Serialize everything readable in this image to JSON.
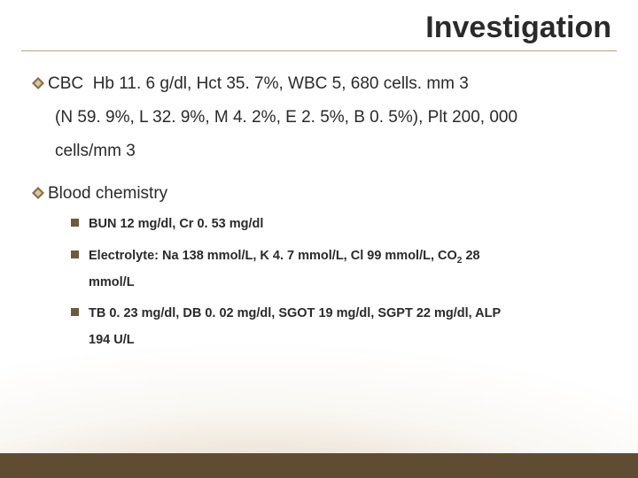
{
  "title": "Investigation",
  "colors": {
    "accent": "#6f5a3b",
    "underline": "#b9a27b",
    "footer": "#5f4c32",
    "text": "#2a2a2a",
    "diamond_outer": "#8a6f44",
    "diamond_inner": "#d8c8a8"
  },
  "sections": [
    {
      "lead": "CBC",
      "text": "Hb 11. 6 g/dl, Hct 35. 7%, WBC 5, 680 cells. mm 3",
      "cont_lines": [
        "(N 59. 9%, L 32. 9%, M 4. 2%, E 2. 5%, B 0. 5%), Plt 200, 000",
        "cells/mm 3"
      ],
      "sub_items": []
    },
    {
      "lead": "Blood chemistry",
      "text": "",
      "cont_lines": [],
      "sub_items": [
        {
          "text": "BUN 12 mg/dl, Cr 0. 53 mg/dl",
          "cont": ""
        },
        {
          "text": "Electrolyte: Na 138 mmol/L, K 4. 7 mmol/L, Cl 99 mmol/L, CO",
          "sub": "2",
          "after_sub": " 28",
          "cont": "mmol/L"
        },
        {
          "text": "TB 0. 23 mg/dl, DB 0. 02 mg/dl, SGOT 19 mg/dl, SGPT 22 mg/dl, ALP",
          "cont": "194 U/L"
        }
      ]
    }
  ]
}
